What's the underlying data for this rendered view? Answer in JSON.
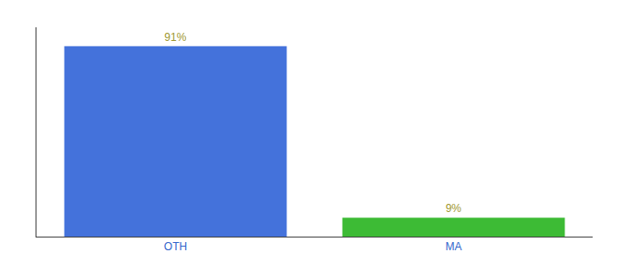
{
  "chart_data": {
    "type": "bar",
    "categories": [
      "OTH",
      "MA"
    ],
    "values": [
      91,
      9
    ],
    "value_labels": [
      "91%",
      "9%"
    ],
    "colors": [
      "#4472db",
      "#3dbb35"
    ],
    "ylim": [
      0,
      100
    ],
    "data_labels": true,
    "tick_labels": "x",
    "grid": false
  }
}
